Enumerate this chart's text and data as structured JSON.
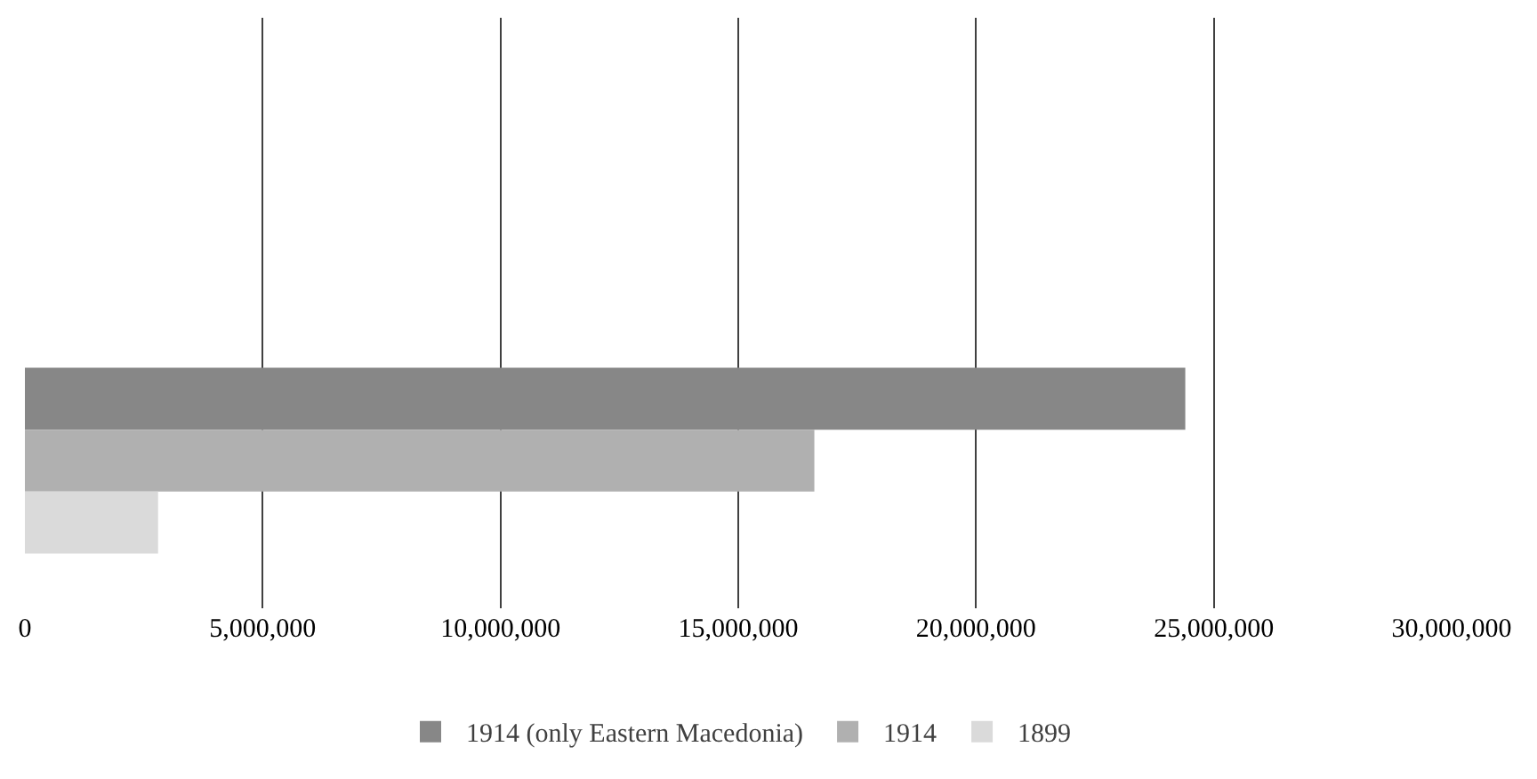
{
  "chart_data": {
    "type": "bar",
    "orientation": "horizontal",
    "categories": [
      null,
      null
    ],
    "series": [
      {
        "name": "1914 (only Eastern Macedonia)",
        "color": "#878787",
        "values": [
          null,
          24400000
        ]
      },
      {
        "name": "1914",
        "color": "#b0b0b0",
        "values": [
          null,
          16600000
        ]
      },
      {
        "name": "1899",
        "color": "#dadada",
        "values": [
          null,
          2800000
        ]
      }
    ],
    "xlim": [
      0,
      30000000
    ],
    "xticks": [
      0,
      {
        "value": 5000000,
        "label": "5,000,000"
      },
      {
        "value": 10000000,
        "label": "10,000,000"
      },
      {
        "value": 15000000,
        "label": "15,000,000"
      },
      {
        "value": 20000000,
        "label": "20,000,000"
      },
      {
        "value": 25000000,
        "label": "25,000,000"
      },
      {
        "value": 30000000,
        "label": "30,000,000"
      }
    ],
    "grid": "x",
    "legend": "bottom"
  }
}
